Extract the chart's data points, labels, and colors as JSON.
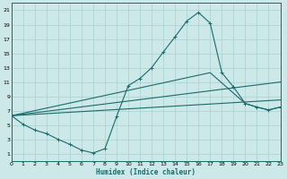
{
  "xlabel": "Humidex (Indice chaleur)",
  "xlim": [
    0,
    23
  ],
  "ylim": [
    0,
    22
  ],
  "xticks": [
    0,
    1,
    2,
    3,
    4,
    5,
    6,
    7,
    8,
    9,
    10,
    11,
    12,
    13,
    14,
    15,
    16,
    17,
    18,
    19,
    20,
    21,
    22,
    23
  ],
  "yticks": [
    1,
    3,
    5,
    7,
    9,
    11,
    13,
    15,
    17,
    19,
    21
  ],
  "bg_color": "#cce8e8",
  "line_color": "#1a6b6b",
  "grid_color": "#a8d0d0",
  "line1_x": [
    0,
    1,
    2,
    3,
    4,
    5,
    6,
    7,
    8,
    9,
    10,
    11,
    12,
    13,
    14,
    15,
    16,
    17,
    18,
    19,
    20,
    21,
    22,
    23
  ],
  "line1_y": [
    6.3,
    5.1,
    4.3,
    3.8,
    3.0,
    2.3,
    1.5,
    1.1,
    1.7,
    6.2,
    10.5,
    11.5,
    13.0,
    15.2,
    17.3,
    19.5,
    20.7,
    19.2,
    12.3,
    10.3,
    8.0,
    7.5,
    7.1,
    7.5
  ],
  "line3_x": [
    0,
    23
  ],
  "line3_y": [
    6.3,
    8.5
  ],
  "line4_x": [
    0,
    23
  ],
  "line4_y": [
    6.3,
    11.0
  ],
  "line5_x": [
    0,
    17,
    20,
    21,
    22,
    23
  ],
  "line5_y": [
    6.3,
    12.3,
    8.0,
    7.5,
    7.1,
    7.5
  ]
}
